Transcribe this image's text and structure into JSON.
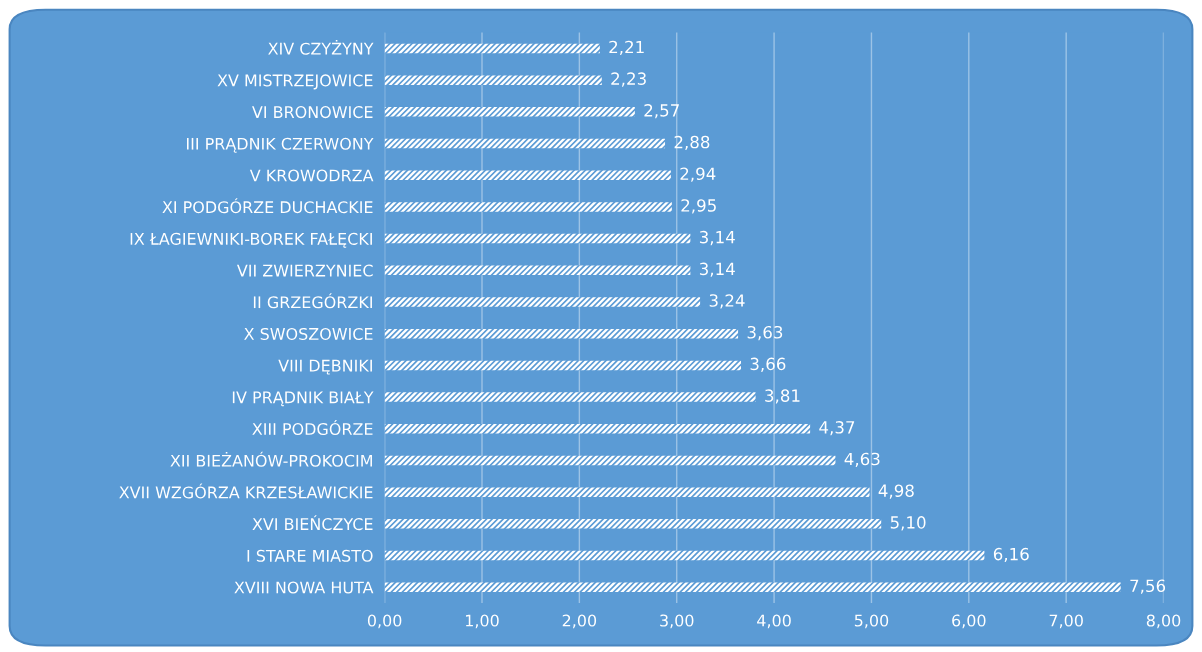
{
  "chart_data": {
    "type": "bar",
    "orientation": "horizontal",
    "categories": [
      "XIV CZYŻYNY",
      "XV MISTRZEJOWICE",
      "VI BRONOWICE",
      "III PRĄDNIK CZERWONY",
      "V KROWODRZA",
      "XI PODGÓRZE DUCHACKIE",
      "IX ŁAGIEWNIKI-BOREK FAŁĘCKI",
      "VII ZWIERZYNIEC",
      "II GRZEGÓRZKI",
      "X SWOSZOWICE",
      "VIII DĘBNIKI",
      "IV PRĄDNIK BIAŁY",
      "XIII PODGÓRZE",
      "XII BIEŻANÓW-PROKOCIM",
      "XVII WZGÓRZA KRZESŁAWICKIE",
      "XVI BIEŃCZYCE",
      "I STARE MIASTO",
      "XVIII NOWA HUTA"
    ],
    "values": [
      2.21,
      2.23,
      2.57,
      2.88,
      2.94,
      2.95,
      3.14,
      3.14,
      3.24,
      3.63,
      3.66,
      3.81,
      4.37,
      4.63,
      4.98,
      5.1,
      6.16,
      7.56
    ],
    "value_labels": [
      "2,21",
      "2,23",
      "2,57",
      "2,88",
      "2,94",
      "2,95",
      "3,14",
      "3,14",
      "3,24",
      "3,63",
      "3,66",
      "3,81",
      "4,37",
      "4,63",
      "4,98",
      "5,10",
      "6,16",
      "7,56"
    ],
    "color": "#ffffff",
    "xlim": [
      0,
      8
    ],
    "xticks": [
      {
        "value": 0,
        "label": "0,00"
      },
      {
        "value": 1,
        "label": "1,00"
      },
      {
        "value": 2,
        "label": "2,00"
      },
      {
        "value": 3,
        "label": "3,00"
      },
      {
        "value": 4,
        "label": "4,00"
      },
      {
        "value": 5,
        "label": "5,00"
      },
      {
        "value": 6,
        "label": "6,00"
      },
      {
        "value": 7,
        "label": "7,00"
      },
      {
        "value": 8,
        "label": "8,00"
      }
    ],
    "grid": "x",
    "legend": false
  }
}
